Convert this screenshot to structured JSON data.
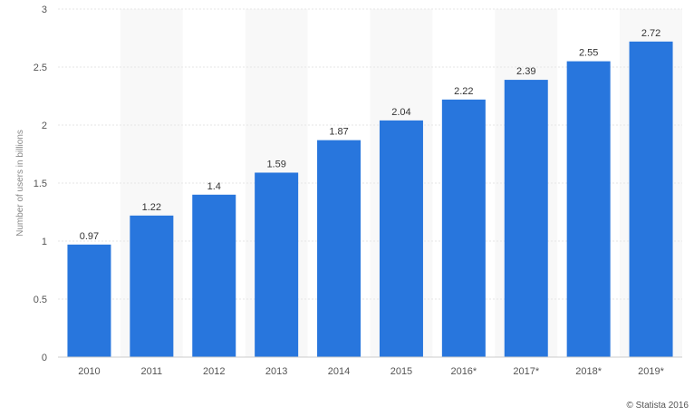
{
  "chart_data": {
    "type": "bar",
    "categories": [
      "2010",
      "2011",
      "2012",
      "2013",
      "2014",
      "2015",
      "2016*",
      "2017*",
      "2018*",
      "2019*"
    ],
    "values": [
      0.97,
      1.22,
      1.4,
      1.59,
      1.87,
      2.04,
      2.22,
      2.39,
      2.55,
      2.72
    ],
    "value_labels": [
      "0.97",
      "1.22",
      "1.4",
      "1.59",
      "1.87",
      "2.04",
      "2.22",
      "2.39",
      "2.55",
      "2.72"
    ],
    "y_ticks": [
      0,
      0.5,
      1,
      1.5,
      2,
      2.5,
      3
    ],
    "y_tick_labels": [
      "0",
      "0.5",
      "1",
      "1.5",
      "2",
      "2.5",
      "3"
    ],
    "ylim": [
      0,
      3
    ],
    "title": "",
    "xlabel": "",
    "ylabel": "Number of users in billions",
    "grid": true,
    "legend": "none",
    "colors": {
      "bar": "#2876dd",
      "band": "#f8f8f8",
      "grid": "#e6e6e6",
      "axis": "#cccccc"
    }
  },
  "credit": "© Statista 2016"
}
